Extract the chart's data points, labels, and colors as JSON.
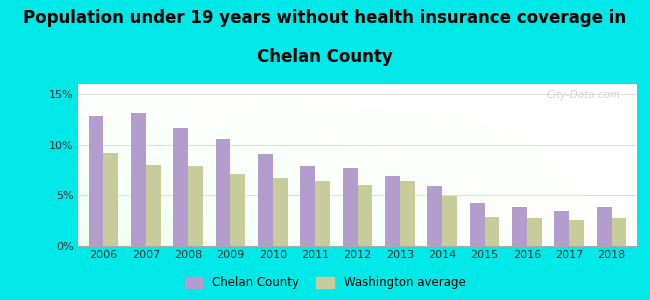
{
  "years": [
    2006,
    2007,
    2008,
    2009,
    2010,
    2011,
    2012,
    2013,
    2014,
    2015,
    2016,
    2017,
    2018
  ],
  "chelan": [
    12.8,
    13.1,
    11.7,
    10.6,
    9.1,
    7.9,
    7.7,
    6.9,
    5.9,
    4.2,
    3.9,
    3.5,
    3.9
  ],
  "washington": [
    9.2,
    8.0,
    7.9,
    7.1,
    6.7,
    6.4,
    6.0,
    6.4,
    4.9,
    2.9,
    2.8,
    2.6,
    2.8
  ],
  "chelan_color": "#b39dcc",
  "washington_color": "#c8cc9a",
  "title_line1": "Population under 19 years without health insurance coverage in",
  "title_line2": "Chelan County",
  "title_fontsize": 12,
  "title_fontweight": "bold",
  "background_color": "#00e8e8",
  "ylim": [
    0,
    16
  ],
  "yticks": [
    0,
    5,
    10,
    15
  ],
  "ytick_labels": [
    "0%",
    "5%",
    "10%",
    "15%"
  ],
  "legend_chelan": "Chelan County",
  "legend_washington": "Washington average",
  "bar_width": 0.35,
  "watermark": "City-Data.com"
}
